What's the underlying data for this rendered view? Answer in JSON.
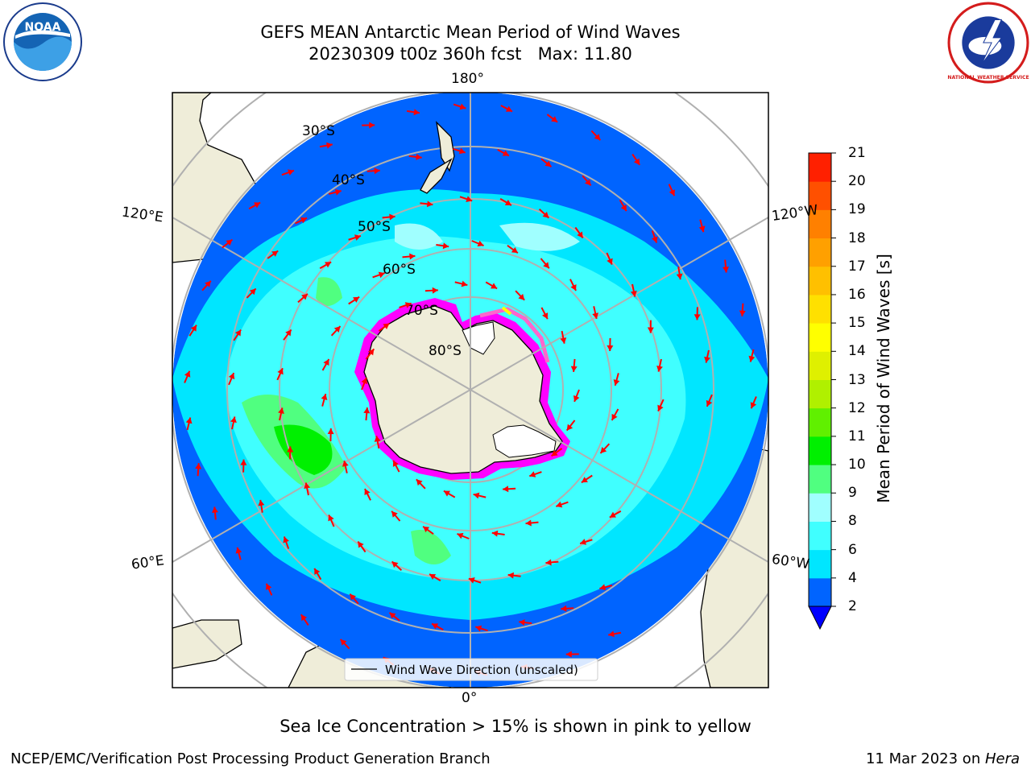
{
  "title": {
    "line1": "GEFS MEAN Antarctic Mean Period of Wind Waves",
    "line2": "20230309 t00z 360h fcst   Max: 11.80"
  },
  "map": {
    "projection": "south polar stereographic",
    "lon_labels": {
      "top": "180°",
      "bottom": "0°",
      "upper_left": "120°E",
      "upper_right": "120°W",
      "lower_left": "60°E",
      "lower_right": "60°W"
    },
    "lat_labels": [
      "30°S",
      "40°S",
      "50°S",
      "60°S",
      "70°S",
      "80°S"
    ],
    "legend_label": "Wind Wave Direction (unscaled)",
    "arrow_color": "#ff0000",
    "land_color": "#efedd9",
    "ice_colors": [
      "#ff00ff",
      "#ff66cc",
      "#ffff00"
    ]
  },
  "colorbar": {
    "label": "Mean Period of Wind Waves [s]",
    "ticks": [
      "2",
      "4",
      "6",
      "8",
      "9",
      "10",
      "11",
      "12",
      "13",
      "14",
      "15",
      "16",
      "17",
      "18",
      "19",
      "20",
      "21"
    ],
    "colors": [
      "#0064ff",
      "#00e6ff",
      "#40ffff",
      "#a0ffff",
      "#50ff80",
      "#00f000",
      "#60f000",
      "#b0f000",
      "#dff000",
      "#ffff00",
      "#ffe000",
      "#ffc000",
      "#ffa000",
      "#ff8000",
      "#ff5000",
      "#ff2000",
      "#ff0000"
    ],
    "extend_color": "#0000ff"
  },
  "caption": "Sea Ice Concentration > 15% is shown in pink to yellow",
  "footer": {
    "left": "NCEP/EMC/Verification Post Processing Product Generation Branch",
    "date": "11 Mar 2023 on ",
    "machine": "Hera"
  },
  "logos": {
    "noaa_text": "NOAA",
    "nws_text": "NATIONAL WEATHER SERVICE"
  }
}
